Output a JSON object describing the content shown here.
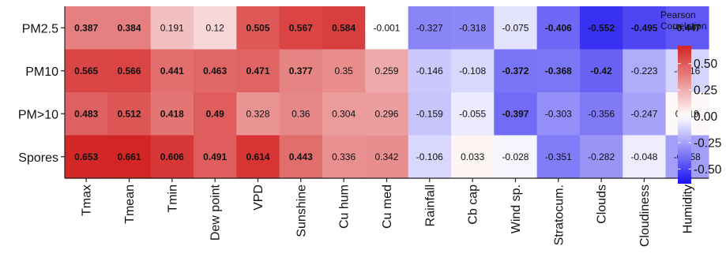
{
  "chart_data": {
    "type": "heatmap",
    "rows": [
      "PM2.5",
      "PM10",
      "PM>10",
      "Spores"
    ],
    "columns": [
      "Tmax",
      "Tmean",
      "Tmin",
      "Dew point",
      "VPD",
      "Sunshine",
      "Cu hum",
      "Cu med",
      "Rainfall",
      "Cb cap",
      "Wind sp.",
      "Stratocum.",
      "Clouds",
      "Cloudiness",
      "Humidity"
    ],
    "values": [
      [
        0.387,
        0.384,
        0.191,
        0.12,
        0.505,
        0.567,
        0.584,
        -0.001,
        -0.327,
        -0.318,
        -0.075,
        -0.406,
        -0.552,
        -0.495,
        -0.447
      ],
      [
        0.565,
        0.566,
        0.441,
        0.463,
        0.471,
        0.377,
        0.35,
        0.259,
        -0.146,
        -0.108,
        -0.372,
        -0.368,
        -0.42,
        -0.223,
        -0.116
      ],
      [
        0.483,
        0.512,
        0.418,
        0.49,
        0.328,
        0.36,
        0.304,
        0.296,
        -0.159,
        -0.055,
        -0.397,
        -0.303,
        -0.356,
        -0.247,
        0.019
      ],
      [
        0.653,
        0.661,
        0.606,
        0.491,
        0.614,
        0.443,
        0.336,
        0.342,
        -0.106,
        0.033,
        -0.028,
        -0.351,
        -0.282,
        -0.048,
        -0.258
      ]
    ],
    "labels": [
      [
        "0.387",
        "0.384",
        "0.191",
        "0.12",
        "0.505",
        "0.567",
        "0.584",
        "-0.001",
        "-0.327",
        "-0.318",
        "-0.075",
        "-0.406",
        "-0.552",
        "-0.495",
        "-0.447"
      ],
      [
        "0.565",
        "0.566",
        "0.441",
        "0.463",
        "0.471",
        "0.377",
        "0.35",
        "0.259",
        "-0.146",
        "-0.108",
        "-0.372",
        "-0.368",
        "-0.42",
        "-0.223",
        "-0.116"
      ],
      [
        "0.483",
        "0.512",
        "0.418",
        "0.49",
        "0.328",
        "0.36",
        "0.304",
        "0.296",
        "-0.159",
        "-0.055",
        "-0.397",
        "-0.303",
        "-0.356",
        "-0.247",
        "0.019"
      ],
      [
        "0.653",
        "0.661",
        "0.606",
        "0.491",
        "0.614",
        "0.443",
        "0.336",
        "0.342",
        "-0.106",
        "0.033",
        "-0.028",
        "-0.351",
        "-0.282",
        "-0.048",
        "-0.258"
      ]
    ],
    "bold": [
      [
        true,
        true,
        false,
        false,
        true,
        true,
        true,
        false,
        false,
        false,
        false,
        true,
        true,
        true,
        true
      ],
      [
        true,
        true,
        true,
        true,
        true,
        true,
        false,
        false,
        false,
        false,
        true,
        true,
        true,
        false,
        false
      ],
      [
        true,
        true,
        true,
        true,
        false,
        false,
        false,
        false,
        false,
        false,
        true,
        false,
        false,
        false,
        false
      ],
      [
        true,
        true,
        true,
        true,
        true,
        true,
        false,
        false,
        false,
        false,
        false,
        false,
        false,
        false,
        false
      ]
    ],
    "legend": {
      "title_lines": [
        "Pearson",
        "Correlation"
      ],
      "ticks": [
        0.5,
        0.25,
        0.0,
        -0.25,
        -0.5
      ],
      "tick_labels": [
        "0.50",
        "0.25",
        "0.00",
        "-0.25",
        "-0.50"
      ],
      "range": [
        -0.64,
        0.67
      ],
      "position": "right"
    },
    "color_scale": {
      "low": "#1a10f0",
      "mid": "#ffffff",
      "high": "#d32222"
    }
  }
}
